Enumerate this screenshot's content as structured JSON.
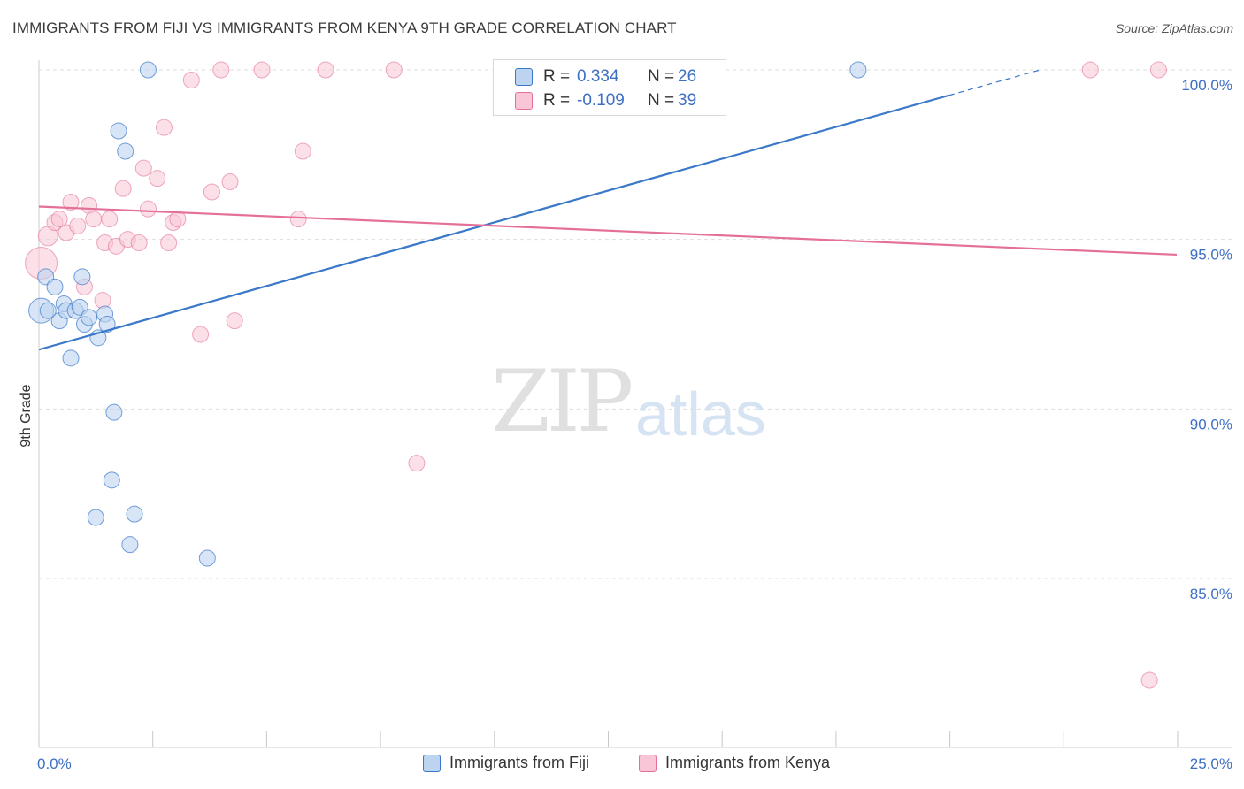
{
  "title": "IMMIGRANTS FROM FIJI VS IMMIGRANTS FROM KENYA 9TH GRADE CORRELATION CHART",
  "source": "Source: ZipAtlas.com",
  "watermark": {
    "zip": "ZIP",
    "atlas": "atlas"
  },
  "legend": {
    "r_label": "R =",
    "n_label": "N =",
    "fiji": {
      "r": "0.334",
      "n": "26"
    },
    "kenya": {
      "r": "-0.109",
      "n": "39"
    }
  },
  "bottom_legend": {
    "fiji": "Immigrants from Fiji",
    "kenya": "Immigrants from Kenya"
  },
  "colors": {
    "fiji": "#3a78c9",
    "fiji_fill": "#bcd4f0",
    "kenya": "#e46f98",
    "kenya_fill": "#f8c6d6",
    "grid": "#dddddd",
    "tick_text": "#3d6fc4"
  },
  "chart_data": {
    "type": "scatter",
    "title": "IMMIGRANTS FROM FIJI VS IMMIGRANTS FROM KENYA 9TH GRADE CORRELATION CHART",
    "xlabel": "",
    "ylabel": "9th Grade",
    "xlim": [
      0,
      25
    ],
    "ylim": [
      80.5,
      100.9
    ],
    "x_tick_labels": [
      "0.0%",
      "25.0%"
    ],
    "y_ticks": [
      85,
      90,
      95,
      100
    ],
    "y_tick_labels": [
      "85.0%",
      "90.0%",
      "95.0%",
      "100.0%"
    ],
    "series": [
      {
        "name": "Immigrants from Fiji",
        "r": 0.334,
        "n": 26,
        "points": [
          [
            0.05,
            92.9,
            14
          ],
          [
            0.15,
            93.9,
            9
          ],
          [
            0.35,
            93.6,
            9
          ],
          [
            0.45,
            92.6,
            9
          ],
          [
            0.55,
            93.1,
            9
          ],
          [
            0.6,
            92.9,
            9
          ],
          [
            0.8,
            92.9,
            9
          ],
          [
            0.9,
            93.0,
            9
          ],
          [
            0.95,
            93.9,
            9
          ],
          [
            1.0,
            92.5,
            9
          ],
          [
            1.1,
            92.7,
            9
          ],
          [
            1.3,
            92.1,
            9
          ],
          [
            1.45,
            92.8,
            9
          ],
          [
            1.5,
            92.5,
            9
          ],
          [
            0.7,
            91.5,
            9
          ],
          [
            1.75,
            98.2,
            9
          ],
          [
            1.9,
            97.6,
            9
          ],
          [
            2.4,
            100.0,
            9
          ],
          [
            1.65,
            89.9,
            9
          ],
          [
            1.6,
            87.9,
            9
          ],
          [
            1.25,
            86.8,
            9
          ],
          [
            2.1,
            86.9,
            9
          ],
          [
            2.0,
            86.0,
            9
          ],
          [
            3.7,
            85.6,
            9
          ],
          [
            18.0,
            100.0,
            9
          ],
          [
            0.2,
            92.9,
            9
          ]
        ],
        "trend": {
          "x0": 0,
          "y0": 91.75,
          "x1": 20.0,
          "y1": 99.25,
          "dash_x1": 22.0,
          "dash_y1": 100.0
        }
      },
      {
        "name": "Immigrants from Kenya",
        "r": -0.109,
        "n": 39,
        "points": [
          [
            0.05,
            94.3,
            18
          ],
          [
            0.2,
            95.1,
            11
          ],
          [
            0.35,
            95.5,
            9
          ],
          [
            0.45,
            95.6,
            9
          ],
          [
            0.6,
            95.2,
            9
          ],
          [
            0.7,
            96.1,
            9
          ],
          [
            0.85,
            95.4,
            9
          ],
          [
            1.0,
            93.6,
            9
          ],
          [
            1.1,
            96.0,
            9
          ],
          [
            1.2,
            95.6,
            9
          ],
          [
            1.4,
            93.2,
            9
          ],
          [
            1.45,
            94.9,
            9
          ],
          [
            1.55,
            95.6,
            9
          ],
          [
            1.7,
            94.8,
            9
          ],
          [
            1.85,
            96.5,
            9
          ],
          [
            1.95,
            95.0,
            9
          ],
          [
            2.2,
            94.9,
            9
          ],
          [
            2.3,
            97.1,
            9
          ],
          [
            2.4,
            95.9,
            9
          ],
          [
            2.6,
            96.8,
            9
          ],
          [
            2.75,
            98.3,
            9
          ],
          [
            2.85,
            94.9,
            9
          ],
          [
            2.95,
            95.5,
            9
          ],
          [
            3.05,
            95.6,
            9
          ],
          [
            3.35,
            99.7,
            9
          ],
          [
            3.55,
            92.2,
            9
          ],
          [
            3.8,
            96.4,
            9
          ],
          [
            4.0,
            100.0,
            9
          ],
          [
            4.2,
            96.7,
            9
          ],
          [
            4.3,
            92.6,
            9
          ],
          [
            4.9,
            100.0,
            9
          ],
          [
            5.7,
            95.6,
            9
          ],
          [
            5.8,
            97.6,
            9
          ],
          [
            6.3,
            100.0,
            9
          ],
          [
            7.8,
            100.0,
            9
          ],
          [
            8.3,
            88.4,
            9
          ],
          [
            23.1,
            100.0,
            9
          ],
          [
            24.6,
            100.0,
            9
          ],
          [
            24.4,
            82.0,
            9
          ]
        ],
        "trend": {
          "x0": 0,
          "y0": 95.97,
          "x1": 25.0,
          "y1": 94.55
        }
      }
    ]
  },
  "axis": {
    "ylabel": "9th Grade"
  }
}
